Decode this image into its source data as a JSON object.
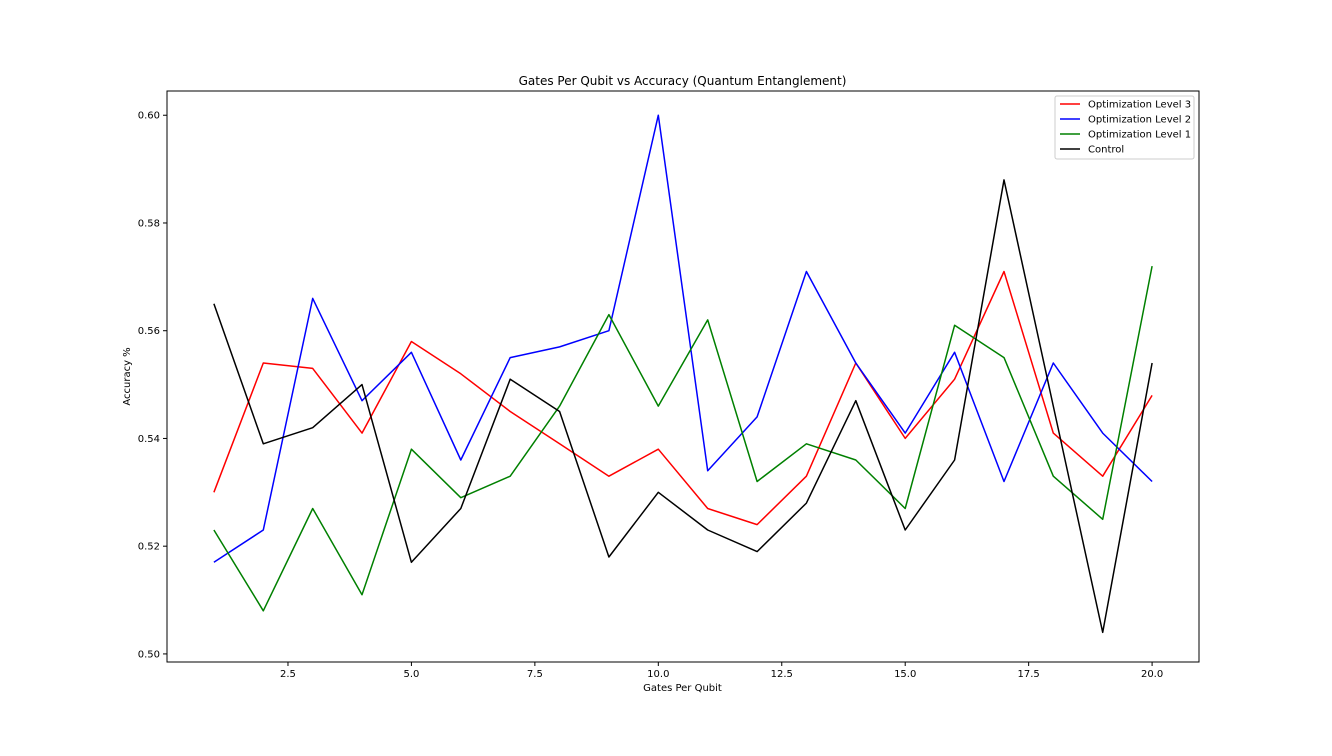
{
  "chart_data": {
    "type": "line",
    "title": "Gates Per Qubit vs Accuracy (Quantum Entanglement)",
    "xlabel": "Gates Per Qubit",
    "ylabel": "Accuracy %",
    "xlim": [
      0.05,
      20.95
    ],
    "ylim": [
      0.4985,
      0.6045
    ],
    "xticks": [
      2.5,
      5.0,
      7.5,
      10.0,
      12.5,
      15.0,
      17.5,
      20.0
    ],
    "xtick_labels": [
      "2.5",
      "5.0",
      "7.5",
      "10.0",
      "12.5",
      "15.0",
      "17.5",
      "20.0"
    ],
    "yticks": [
      0.5,
      0.52,
      0.54,
      0.56,
      0.58,
      0.6
    ],
    "ytick_labels": [
      "0.50",
      "0.52",
      "0.54",
      "0.56",
      "0.58",
      "0.60"
    ],
    "grid": false,
    "legend_position": "top-right",
    "x": [
      1,
      2,
      3,
      4,
      5,
      6,
      7,
      8,
      9,
      10,
      11,
      12,
      13,
      14,
      15,
      16,
      17,
      18,
      19,
      20
    ],
    "series": [
      {
        "name": "Optimization Level 3",
        "color": "#ff0000",
        "values": [
          0.53,
          0.554,
          0.553,
          0.541,
          0.558,
          0.552,
          0.545,
          0.539,
          0.533,
          0.538,
          0.527,
          0.524,
          0.533,
          0.554,
          0.54,
          0.551,
          0.571,
          0.541,
          0.533,
          0.548
        ]
      },
      {
        "name": "Optimization Level 2",
        "color": "#0000ff",
        "values": [
          0.517,
          0.523,
          0.566,
          0.547,
          0.556,
          0.536,
          0.555,
          0.557,
          0.56,
          0.6,
          0.534,
          0.544,
          0.571,
          0.554,
          0.541,
          0.556,
          0.532,
          0.554,
          0.541,
          0.532
        ]
      },
      {
        "name": "Optimization Level 1",
        "color": "#008000",
        "values": [
          0.523,
          0.508,
          0.527,
          0.511,
          0.538,
          0.529,
          0.533,
          0.546,
          0.563,
          0.546,
          0.562,
          0.532,
          0.539,
          0.536,
          0.527,
          0.561,
          0.555,
          0.533,
          0.525,
          0.572
        ]
      },
      {
        "name": "Control",
        "color": "#000000",
        "values": [
          0.565,
          0.539,
          0.542,
          0.55,
          0.517,
          0.527,
          0.551,
          0.545,
          0.518,
          0.53,
          0.523,
          0.519,
          0.528,
          0.547,
          0.523,
          0.536,
          0.588,
          0.546,
          0.504,
          0.554
        ]
      }
    ]
  }
}
